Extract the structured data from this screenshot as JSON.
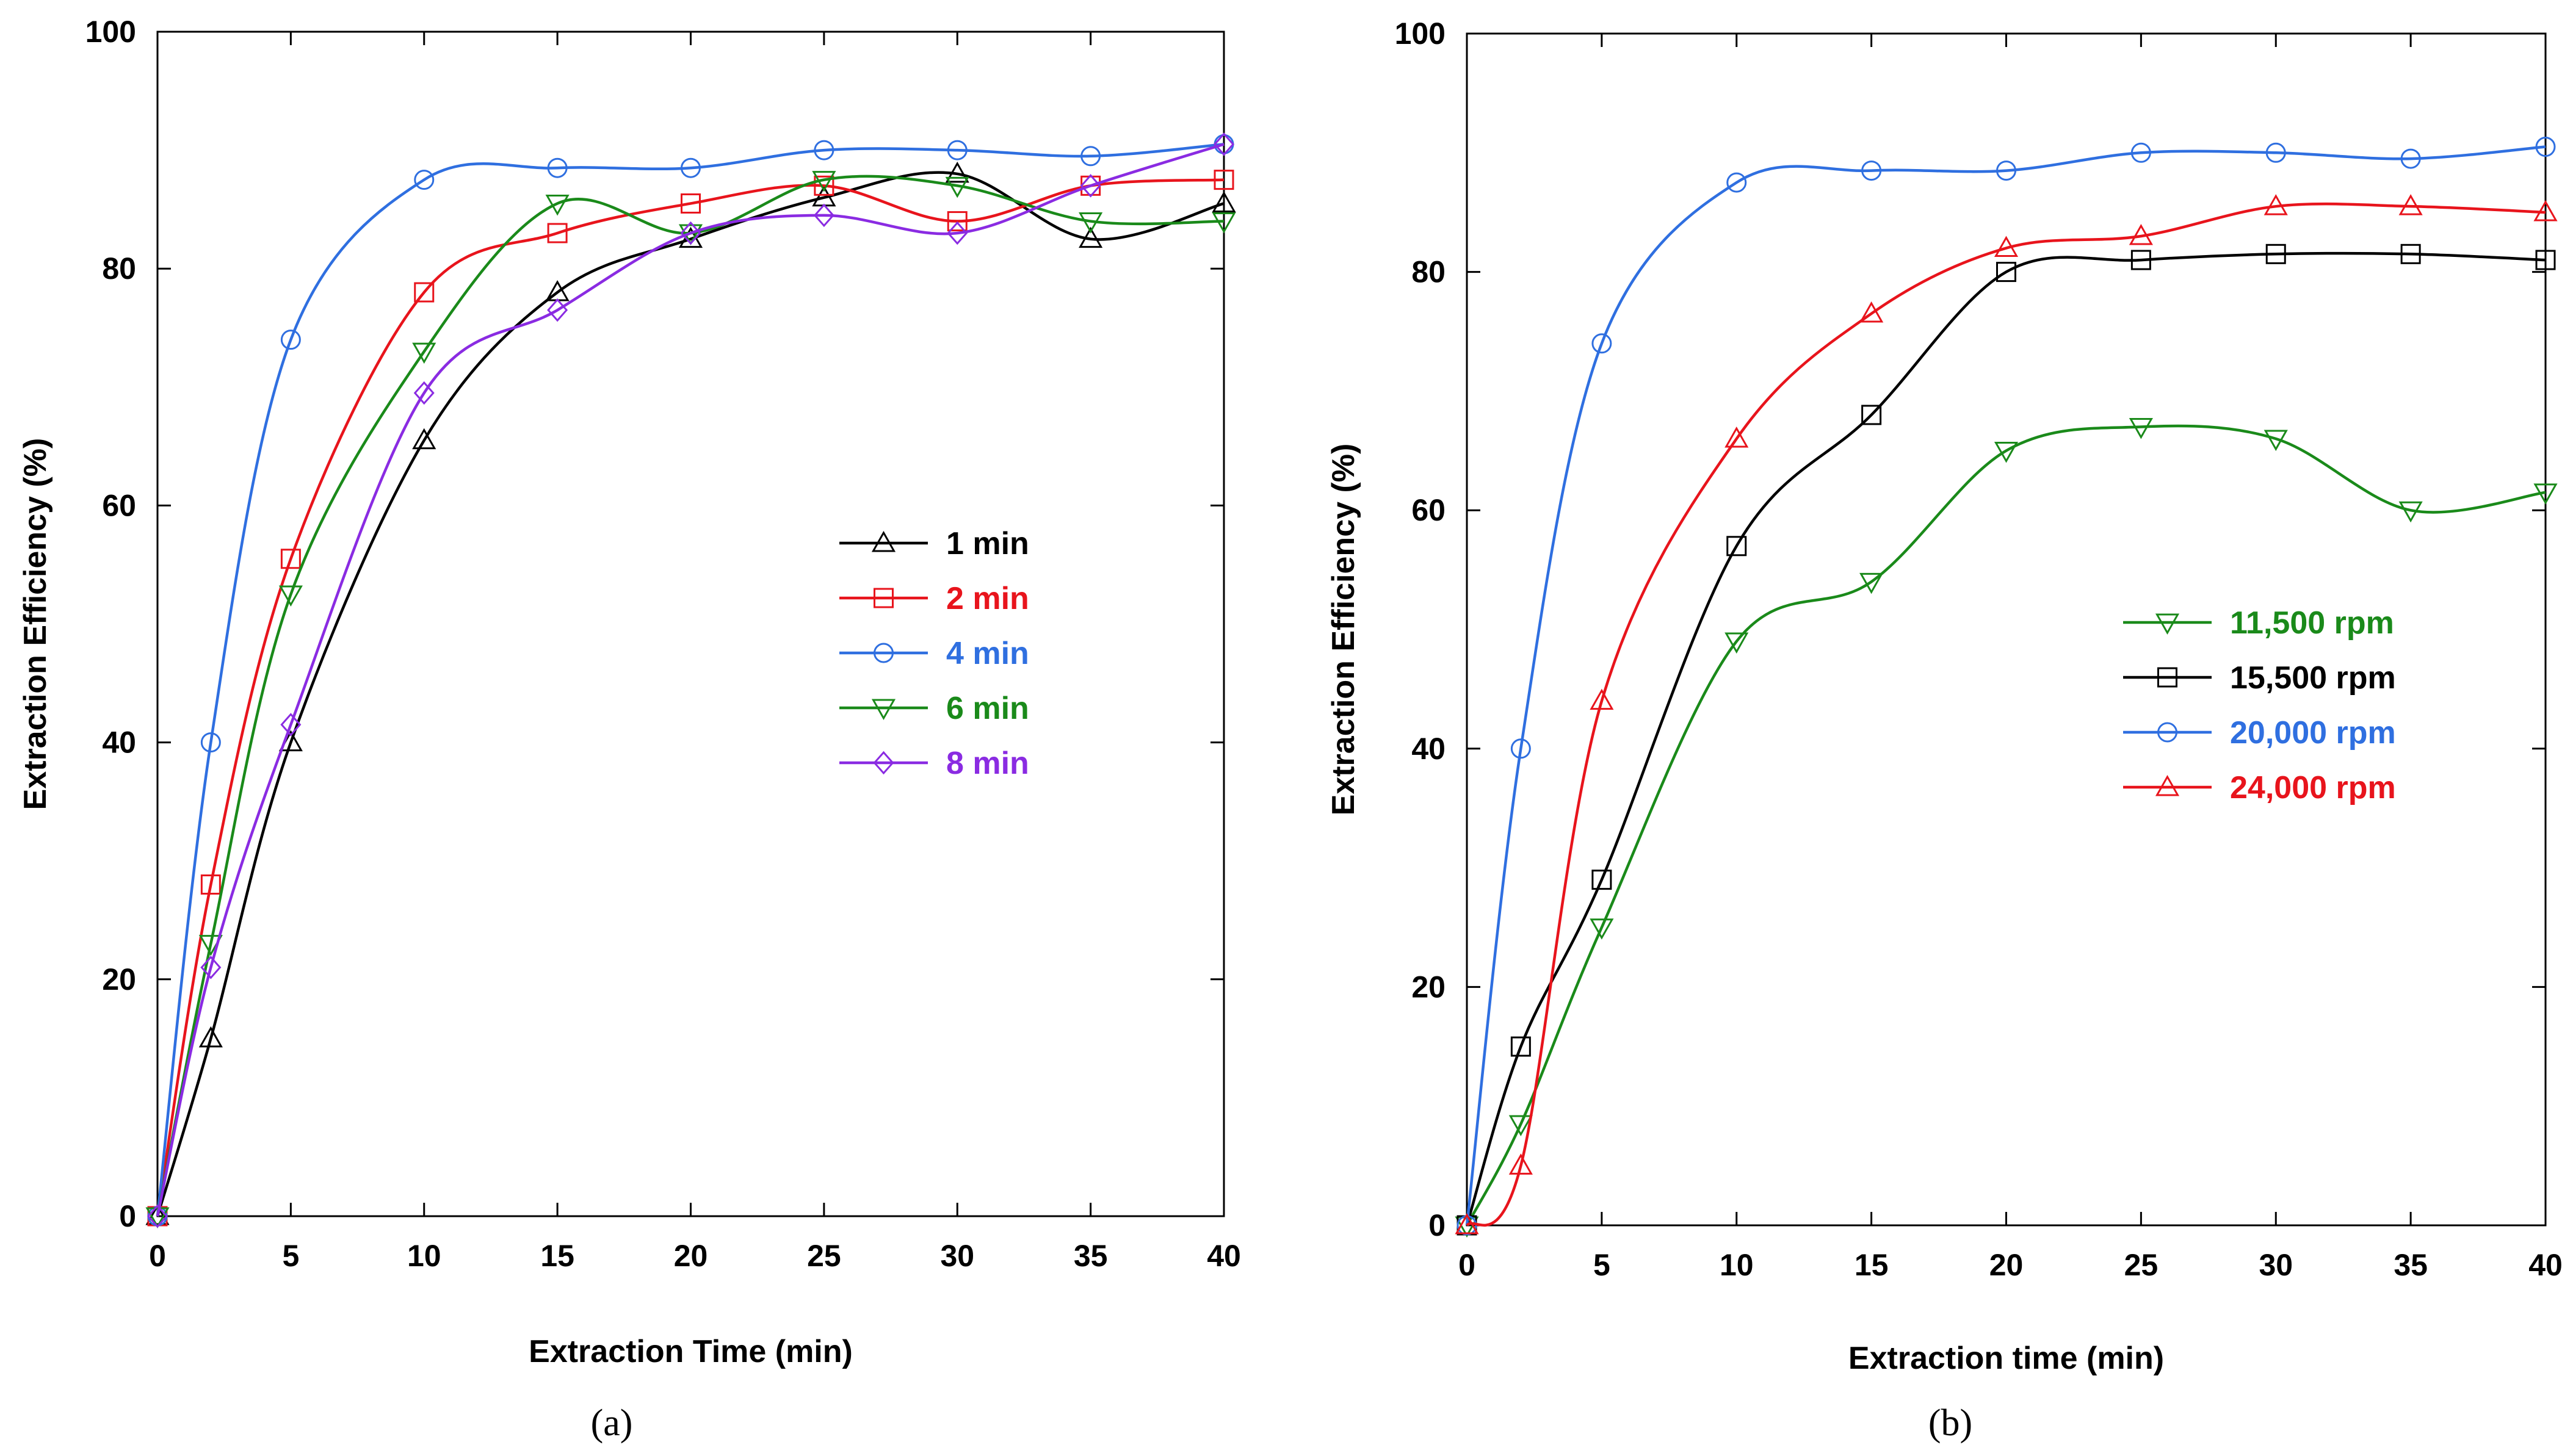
{
  "chart_data": [
    {
      "type": "line",
      "panel_label": "(a)",
      "xlabel": "Extraction Time (min)",
      "ylabel": "Extraction Efficiency (%)",
      "xlim": [
        0,
        40
      ],
      "ylim": [
        0,
        100
      ],
      "xticks": [
        0,
        5,
        10,
        15,
        20,
        25,
        30,
        35,
        40
      ],
      "yticks": [
        0,
        20,
        40,
        60,
        80,
        100
      ],
      "x": [
        0,
        2,
        5,
        10,
        15,
        20,
        25,
        30,
        35,
        40
      ],
      "grid": false,
      "legend_position": "center-right",
      "series": [
        {
          "name": "1 min",
          "color": "#000000",
          "marker": "triangle-up",
          "values": [
            0,
            15,
            40,
            65.5,
            78,
            82.5,
            86,
            88,
            82.5,
            85.5
          ]
        },
        {
          "name": "2 min",
          "color": "#e8141c",
          "marker": "square",
          "values": [
            0,
            28,
            55.5,
            78,
            83,
            85.5,
            87,
            84,
            87,
            87.5
          ]
        },
        {
          "name": "4 min",
          "color": "#2f6fe0",
          "marker": "circle",
          "values": [
            0,
            40,
            74,
            87.5,
            88.5,
            88.5,
            90,
            90,
            89.5,
            90.5
          ]
        },
        {
          "name": "6 min",
          "color": "#1a8a1a",
          "marker": "triangle-down",
          "values": [
            0,
            23,
            52.5,
            73,
            85.5,
            83,
            87.5,
            87,
            84,
            84
          ]
        },
        {
          "name": "8 min",
          "color": "#8a2be2",
          "marker": "diamond",
          "values": [
            0,
            21,
            41.5,
            69.5,
            76.5,
            83,
            84.5,
            83,
            87,
            90.5
          ]
        }
      ]
    },
    {
      "type": "line",
      "panel_label": "(b)",
      "xlabel": "Extraction time (min)",
      "ylabel": "Extraction Efficiency (%)",
      "xlim": [
        0,
        40
      ],
      "ylim": [
        0,
        100
      ],
      "xticks": [
        0,
        5,
        10,
        15,
        20,
        25,
        30,
        35,
        40
      ],
      "yticks": [
        0,
        20,
        40,
        60,
        80,
        100
      ],
      "x": [
        0,
        2,
        5,
        10,
        15,
        20,
        25,
        30,
        35,
        40
      ],
      "grid": false,
      "legend_position": "center-right",
      "series": [
        {
          "name": "11,500 rpm",
          "color": "#1a8a1a",
          "marker": "triangle-down",
          "values": [
            0,
            8.5,
            25,
            49,
            54,
            65,
            67,
            66,
            60,
            61.5
          ]
        },
        {
          "name": "15,500 rpm",
          "color": "#000000",
          "marker": "square",
          "values": [
            0,
            15,
            29,
            57,
            68,
            80,
            81,
            81.5,
            81.5,
            81
          ]
        },
        {
          "name": "20,000 rpm",
          "color": "#2f6fe0",
          "marker": "circle",
          "values": [
            0,
            40,
            74,
            87.5,
            88.5,
            88.5,
            90,
            90,
            89.5,
            90.5
          ]
        },
        {
          "name": "24,000 rpm",
          "color": "#e8141c",
          "marker": "triangle-up",
          "values": [
            0,
            5,
            44,
            66,
            76.5,
            82,
            83,
            85.5,
            85.5,
            85
          ]
        }
      ]
    }
  ]
}
